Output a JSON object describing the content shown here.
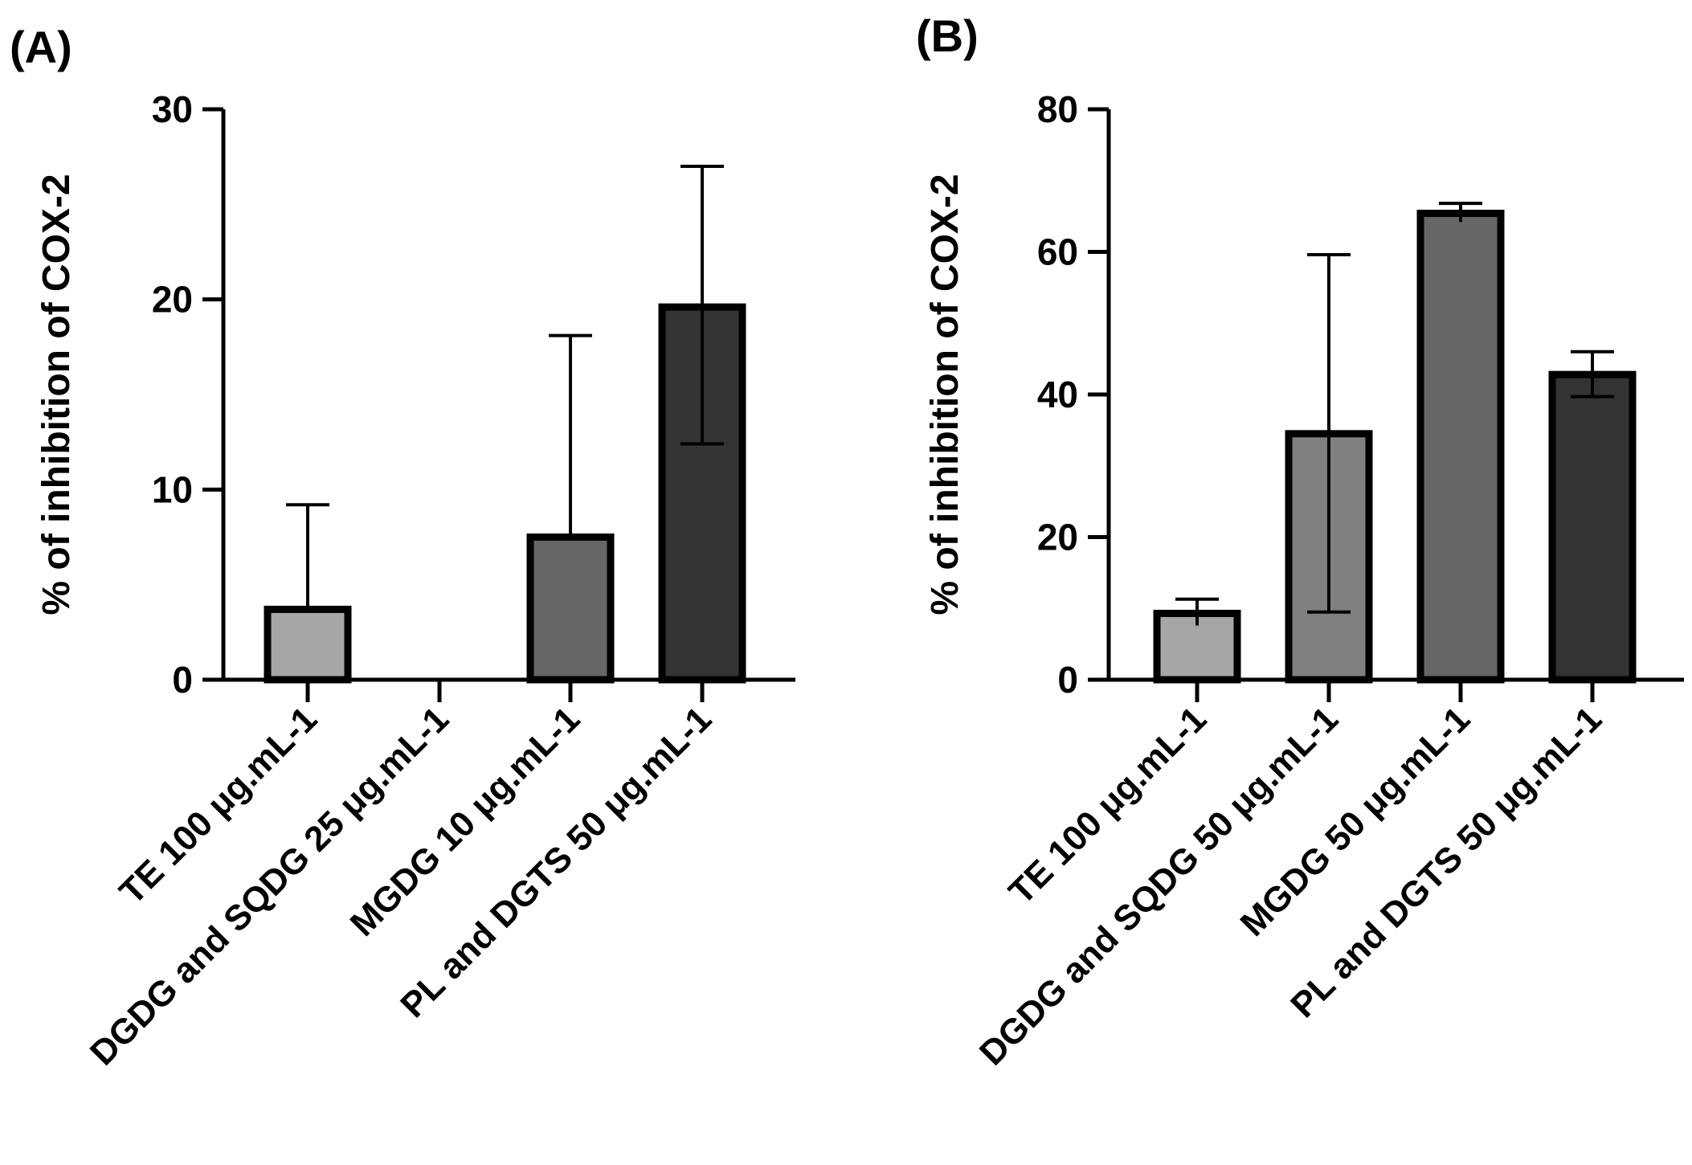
{
  "figure": {
    "panels": [
      {
        "label": "(A)"
      },
      {
        "label": "(B)"
      }
    ]
  },
  "chart_data": [
    {
      "type": "bar",
      "panel": "(A)",
      "title": "",
      "xlabel": "",
      "ylabel": "% of inhibition of COX-2",
      "ylim": [
        0,
        30
      ],
      "yticks": [
        0,
        10,
        20,
        30
      ],
      "categories": [
        "TE 100 μg.mL-1",
        "DGDG and SQDG 25 μg.mL-1",
        "MGDG 10 μg.mL-1",
        "PL and DGTS 50 μg.mL-1"
      ],
      "values": [
        3.7,
        0,
        7.5,
        19.6
      ],
      "error_upper": [
        9.2,
        0,
        18.1,
        27.0
      ],
      "error_lower": [
        3.7,
        0,
        7.5,
        12.4
      ],
      "colors": [
        "#a6a6a8",
        "#8a8a8a",
        "#666666",
        "#333333"
      ]
    },
    {
      "type": "bar",
      "panel": "(B)",
      "title": "",
      "xlabel": "",
      "ylabel": "% of inhibition of COX-2",
      "ylim": [
        0,
        80
      ],
      "yticks": [
        0,
        20,
        40,
        60,
        80
      ],
      "categories": [
        "TE 100 μg.mL-1",
        "DGDG and SQDG 50 μg.mL-1",
        "MGDG 50 μg.mL-1",
        "PL and DGTS 50 μg.mL-1"
      ],
      "values": [
        9.3,
        34.5,
        65.4,
        42.8
      ],
      "error_upper": [
        11.3,
        59.6,
        66.8,
        46.0
      ],
      "error_lower": [
        7.6,
        9.5,
        64.2,
        39.7
      ],
      "colors": [
        "#a6a6a8",
        "#808080",
        "#666666",
        "#333333"
      ]
    }
  ]
}
